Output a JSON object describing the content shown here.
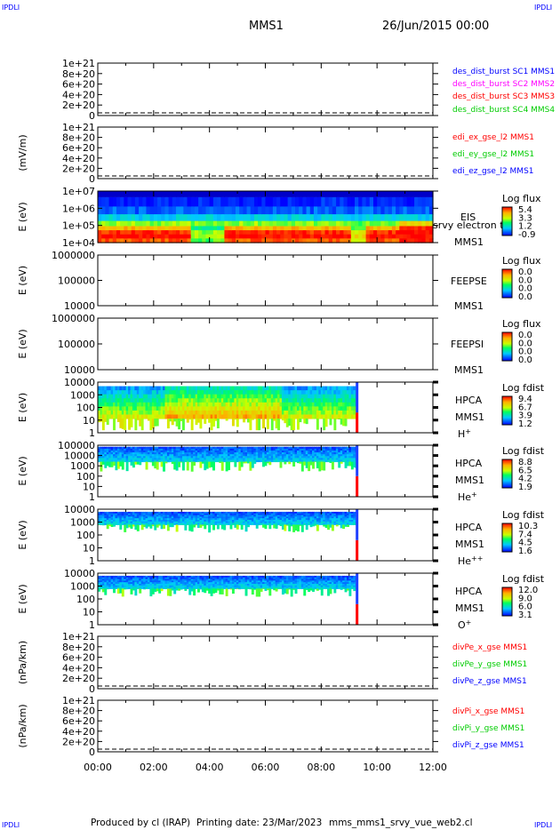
{
  "header": {
    "corner_tl": "IPDLI",
    "corner_tr": "IPDLI",
    "corner_bl": "IPDLI",
    "corner_br": "IPDLI",
    "mission": "MMS1",
    "date": "26/Jun/2015 00:00"
  },
  "footer": {
    "credit": "Produced by cl (IRAP)",
    "printing": "Printing date: 23/Mar/2023",
    "script": "mms_mms1_srvy_vue_web2.cl"
  },
  "colors": {
    "blue": "#0000ff",
    "magenta": "#ff00ff",
    "red": "#ff0000",
    "green": "#00cc00",
    "dash": "#000000"
  },
  "chart_data": [
    {
      "id": "des",
      "type": "line",
      "ylabel": "",
      "yticks": [
        "1e+21",
        "8e+20",
        "6e+20",
        "4e+20",
        "2e+20",
        "0"
      ],
      "legend": [
        {
          "name": "des_dist_burst SC1 MMS1",
          "color": "#0000ff"
        },
        {
          "name": "des_dist_burst SC2 MMS2",
          "color": "#ff00ff"
        },
        {
          "name": "des_dist_burst SC3 MMS3",
          "color": "#ff0000"
        },
        {
          "name": "des_dist_burst SC4 MMS4",
          "color": "#00cc00"
        }
      ]
    },
    {
      "id": "edi",
      "type": "line",
      "ylabel": "(mV/m)",
      "yticks": [
        "1e+21",
        "8e+20",
        "6e+20",
        "4e+20",
        "2e+20",
        "0"
      ],
      "legend": [
        {
          "name": "edi_ex_gse_l2 MMS1",
          "color": "#ff0000"
        },
        {
          "name": "edi_ey_gse_l2 MMS1",
          "color": "#00cc00"
        },
        {
          "name": "edi_ez_gse_l2 MMS1",
          "color": "#0000ff"
        }
      ]
    },
    {
      "id": "eis",
      "type": "heatmap",
      "ylabel": "E (eV)",
      "yticks": [
        "1e+07",
        "1e+06",
        "1e+05",
        "1e+04"
      ],
      "instrument": [
        "EIS",
        "srvy electron td",
        "MMS1"
      ],
      "colorbar_title": "Log flux",
      "colorbar_ticks": [
        "5.4",
        "3.3",
        "1.2",
        "-0.9"
      ]
    },
    {
      "id": "feepse",
      "type": "heatmap",
      "ylabel": "E (eV)",
      "yticks": [
        "1000000",
        "100000",
        "10000"
      ],
      "instrument": [
        "FEEPSE",
        "MMS1"
      ],
      "colorbar_title": "Log flux",
      "colorbar_ticks": [
        "0.0",
        "0.0",
        "0.0",
        "0.0"
      ]
    },
    {
      "id": "feepsi",
      "type": "heatmap",
      "ylabel": "E (eV)",
      "yticks": [
        "1000000",
        "100000",
        "10000"
      ],
      "instrument": [
        "FEEPSI",
        "MMS1"
      ],
      "colorbar_title": "Log flux",
      "colorbar_ticks": [
        "0.0",
        "0.0",
        "0.0",
        "0.0"
      ]
    },
    {
      "id": "hpca_h",
      "type": "heatmap",
      "ylabel": "E (eV)",
      "yticks": [
        "10000",
        "1000",
        "100",
        "10",
        "1"
      ],
      "instrument": [
        "HPCA",
        "MMS1",
        "H+"
      ],
      "colorbar_title": "Log fdist",
      "colorbar_ticks": [
        "9.4",
        "6.7",
        "3.9",
        "1.2"
      ]
    },
    {
      "id": "hpca_he",
      "type": "heatmap",
      "ylabel": "E (eV)",
      "yticks": [
        "100000",
        "10000",
        "1000",
        "100",
        "10",
        "1"
      ],
      "instrument": [
        "HPCA",
        "MMS1",
        "He+"
      ],
      "colorbar_title": "Log fdist",
      "colorbar_ticks": [
        "8.8",
        "6.5",
        "4.2",
        "1.9"
      ]
    },
    {
      "id": "hpca_hepp",
      "type": "heatmap",
      "ylabel": "E (eV)",
      "yticks": [
        "10000",
        "1000",
        "100",
        "10",
        "1"
      ],
      "instrument": [
        "HPCA",
        "MMS1",
        "He++"
      ],
      "colorbar_title": "Log fdist",
      "colorbar_ticks": [
        "10.3",
        "7.4",
        "4.5",
        "1.6"
      ]
    },
    {
      "id": "hpca_o",
      "type": "heatmap",
      "ylabel": "E (eV)",
      "yticks": [
        "10000",
        "1000",
        "100",
        "10",
        "1"
      ],
      "instrument": [
        "HPCA",
        "MMS1",
        "O+"
      ],
      "colorbar_title": "Log fdist",
      "colorbar_ticks": [
        "12.0",
        "9.0",
        "6.0",
        "3.1"
      ]
    },
    {
      "id": "divpe",
      "type": "line",
      "ylabel": "(nPa/km)",
      "yticks": [
        "1e+21",
        "8e+20",
        "6e+20",
        "4e+20",
        "2e+20",
        "0"
      ],
      "legend": [
        {
          "name": "divPe_x_gse MMS1",
          "color": "#ff0000"
        },
        {
          "name": "divPe_y_gse MMS1",
          "color": "#00cc00"
        },
        {
          "name": "divPe_z_gse MMS1",
          "color": "#0000ff"
        }
      ]
    },
    {
      "id": "divpi",
      "type": "line",
      "ylabel": "(nPa/km)",
      "yticks": [
        "1e+21",
        "8e+20",
        "6e+20",
        "4e+20",
        "2e+20",
        "0"
      ],
      "legend": [
        {
          "name": "divPi_x_gse MMS1",
          "color": "#ff0000"
        },
        {
          "name": "divPi_y_gse MMS1",
          "color": "#00cc00"
        },
        {
          "name": "divPi_z_gse MMS1",
          "color": "#0000ff"
        }
      ]
    }
  ],
  "time_axis": [
    "00:00",
    "02:00",
    "04:00",
    "06:00",
    "08:00",
    "10:00",
    "12:00"
  ]
}
